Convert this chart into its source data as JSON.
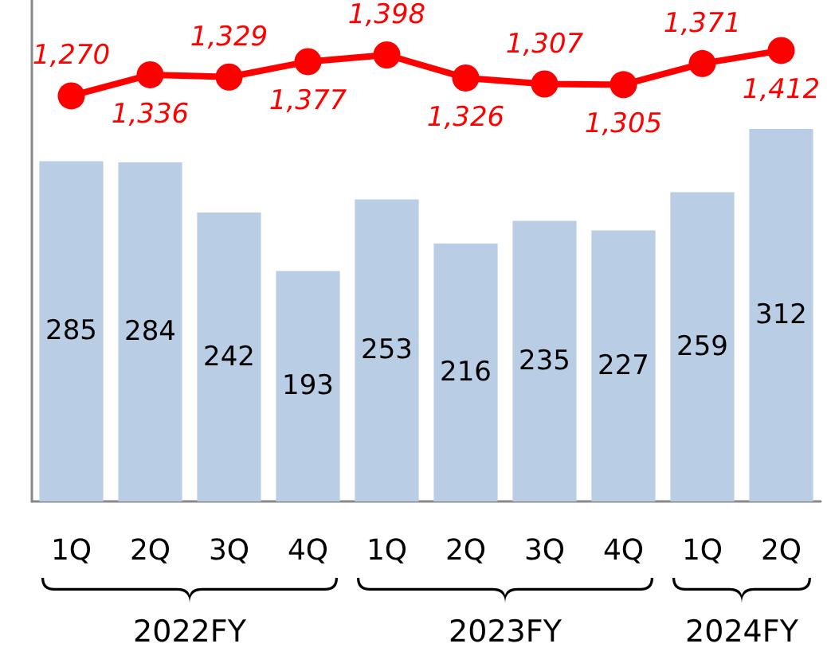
{
  "chart_data": {
    "type": "bar",
    "categories": [
      "1Q",
      "2Q",
      "3Q",
      "4Q",
      "1Q",
      "2Q",
      "3Q",
      "4Q",
      "1Q",
      "2Q"
    ],
    "series": [
      {
        "color": "#b9cde5",
        "values": [
          285,
          284,
          242,
          193,
          253,
          216,
          235,
          227,
          259,
          312
        ]
      },
      {
        "type": "line",
        "axis": "y2",
        "color": "#ff0000",
        "values": [
          1270,
          1336,
          1329,
          1377,
          1398,
          1326,
          1307,
          1305,
          1371,
          1412
        ],
        "value_labels": [
          "1,270",
          "1,336",
          "1,329",
          "1,377",
          "1,398",
          "1,326",
          "1,307",
          "1,305",
          "1,371",
          "1,412"
        ]
      }
    ],
    "ylim": [
      0,
      420
    ],
    "y2lim": [
      0,
      1570
    ],
    "annotations": [
      "2022FY",
      "2023FY",
      "2024FY"
    ],
    "data_labels": true,
    "tick_labels": "x",
    "marker": "circle",
    "line_style": "solid"
  }
}
